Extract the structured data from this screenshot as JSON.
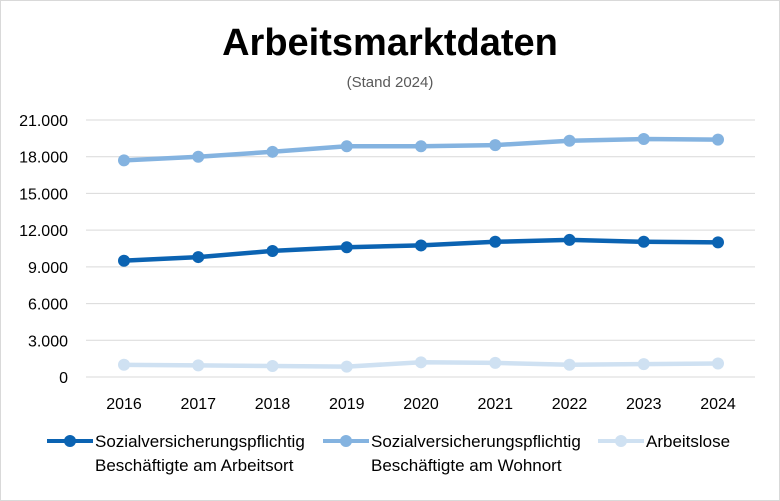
{
  "chart_data": {
    "type": "line",
    "title": "Arbeitsmarktdaten",
    "subtitle": "(Stand 2024)",
    "xlabel": "",
    "ylabel": "",
    "categories": [
      "2016",
      "2017",
      "2018",
      "2019",
      "2020",
      "2021",
      "2022",
      "2023",
      "2024"
    ],
    "ylim": [
      0,
      21000
    ],
    "yticks": [
      0,
      3000,
      6000,
      9000,
      12000,
      15000,
      18000,
      21000
    ],
    "ytick_labels": [
      "0",
      "3.000",
      "6.000",
      "9.000",
      "12.000",
      "15.000",
      "18.000",
      "21.000"
    ],
    "grid": true,
    "legend_position": "bottom",
    "series": [
      {
        "name": "Sozialversicherungspflichtig Beschäftigte am Arbeitsort",
        "legend_label": "Sozialversicherungspflichtig\nBeschäftigte am Arbeitsort",
        "color": "#0b63b2",
        "values": [
          9500,
          9800,
          10300,
          10600,
          10750,
          11050,
          11200,
          11050,
          11000
        ]
      },
      {
        "name": "Sozialversicherungspflichtig Beschäftigte am Wohnort",
        "legend_label": "Sozialversicherungspflichtig\nBeschäftigte am Wohnort",
        "color": "#84b3e0",
        "values": [
          17700,
          18000,
          18400,
          18850,
          18850,
          18950,
          19300,
          19450,
          19400
        ]
      },
      {
        "name": "Arbeitslose",
        "legend_label": "Arbeitslose",
        "color": "#cfe1f2",
        "values": [
          1000,
          950,
          900,
          850,
          1200,
          1150,
          1000,
          1050,
          1100
        ]
      }
    ]
  }
}
